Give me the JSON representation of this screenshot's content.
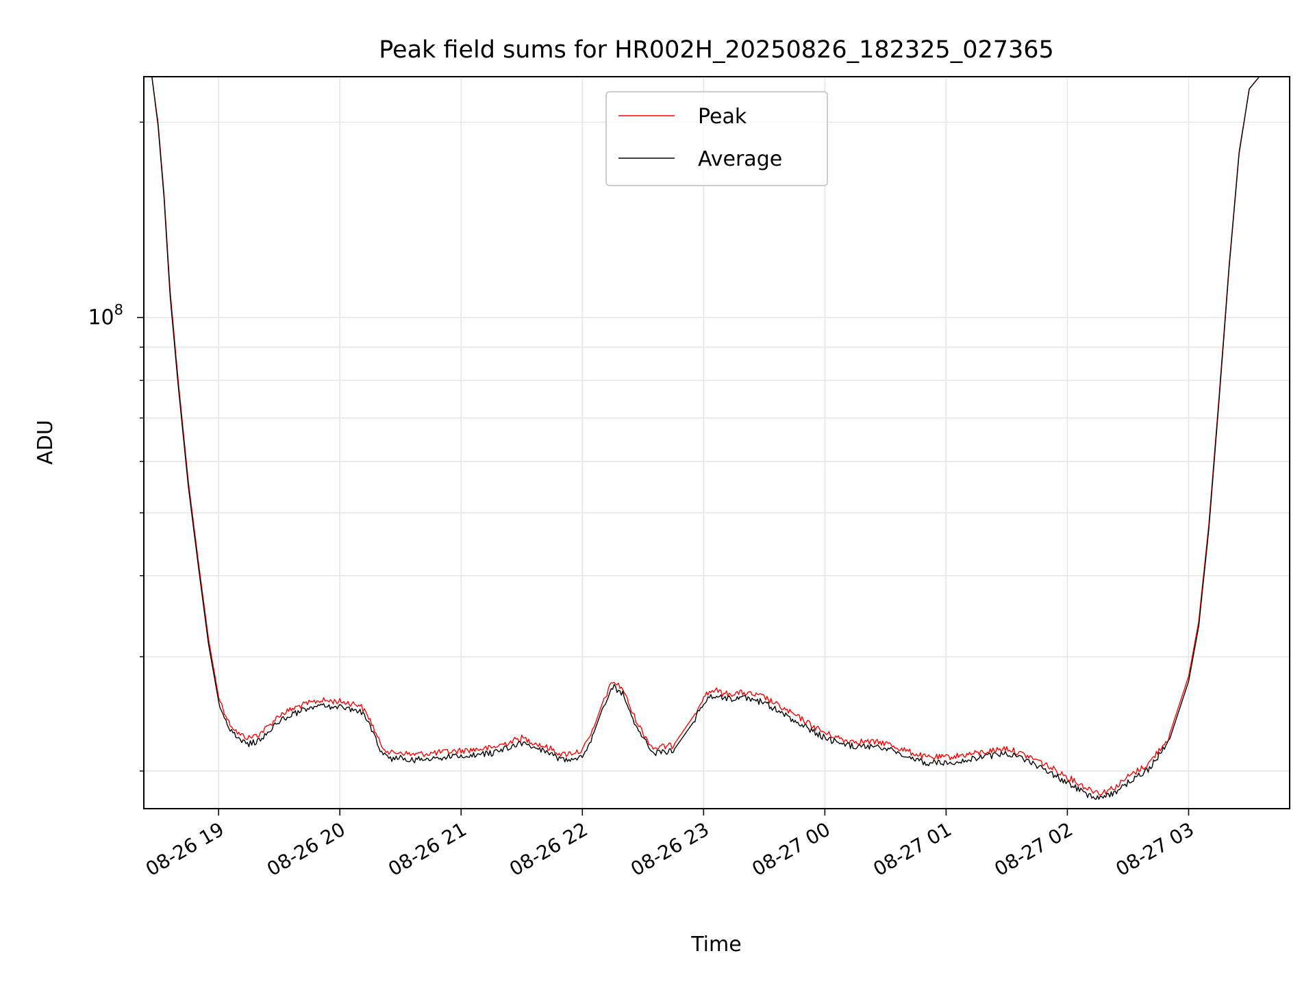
{
  "chart_data": {
    "type": "line",
    "title": "Peak field sums for HR002H_20250826_182325_027365",
    "xlabel": "Time",
    "ylabel": "ADU",
    "x_ticks": [
      "08-26 19",
      "08-26 20",
      "08-26 21",
      "08-26 22",
      "08-26 23",
      "08-27 00",
      "08-27 01",
      "08-27 02",
      "08-27 03"
    ],
    "xlim": [
      "2025-08-26 18:23",
      "2025-08-27 03:50"
    ],
    "y_scale": "log",
    "ylim": [
      17500000,
      235000000
    ],
    "y_major_ticks": [
      {
        "value": 100000000,
        "base": "10",
        "exp": "8"
      }
    ],
    "y_minor_ticks": [
      20000000,
      30000000,
      40000000,
      50000000,
      60000000,
      70000000,
      80000000,
      90000000,
      200000000
    ],
    "grid": true,
    "legend_position": "top-center",
    "series": [
      {
        "name": "Peak",
        "color": "#ff0000",
        "x": [
          "2025-08-26 18:23",
          "2025-08-26 18:27",
          "2025-08-26 18:30",
          "2025-08-26 18:33",
          "2025-08-26 18:36",
          "2025-08-26 18:40",
          "2025-08-26 18:45",
          "2025-08-26 18:50",
          "2025-08-26 18:55",
          "2025-08-26 19:00",
          "2025-08-26 19:05",
          "2025-08-26 19:10",
          "2025-08-26 19:15",
          "2025-08-26 19:20",
          "2025-08-26 19:25",
          "2025-08-26 19:30",
          "2025-08-26 19:40",
          "2025-08-26 19:50",
          "2025-08-26 20:00",
          "2025-08-26 20:10",
          "2025-08-26 20:15",
          "2025-08-26 20:20",
          "2025-08-26 20:25",
          "2025-08-26 20:30",
          "2025-08-26 20:35",
          "2025-08-26 20:45",
          "2025-08-26 21:00",
          "2025-08-26 21:15",
          "2025-08-26 21:30",
          "2025-08-26 21:45",
          "2025-08-26 21:50",
          "2025-08-26 22:00",
          "2025-08-26 22:05",
          "2025-08-26 22:10",
          "2025-08-26 22:15",
          "2025-08-26 22:20",
          "2025-08-26 22:25",
          "2025-08-26 22:30",
          "2025-08-26 22:35",
          "2025-08-26 22:45",
          "2025-08-26 22:55",
          "2025-08-26 23:00",
          "2025-08-26 23:05",
          "2025-08-26 23:10",
          "2025-08-26 23:20",
          "2025-08-26 23:30",
          "2025-08-26 23:40",
          "2025-08-26 23:50",
          "2025-08-27 00:00",
          "2025-08-27 00:10",
          "2025-08-27 00:20",
          "2025-08-27 00:30",
          "2025-08-27 00:40",
          "2025-08-27 00:50",
          "2025-08-27 01:00",
          "2025-08-27 01:15",
          "2025-08-27 01:30",
          "2025-08-27 01:45",
          "2025-08-27 02:00",
          "2025-08-27 02:10",
          "2025-08-27 02:17",
          "2025-08-27 02:25",
          "2025-08-27 02:30",
          "2025-08-27 02:40",
          "2025-08-27 02:50",
          "2025-08-27 03:00",
          "2025-08-27 03:05",
          "2025-08-27 03:10",
          "2025-08-27 03:15",
          "2025-08-27 03:20",
          "2025-08-27 03:25",
          "2025-08-27 03:30",
          "2025-08-27 03:35",
          "2025-08-27 03:40",
          "2025-08-27 03:50"
        ],
        "values": [
          235000000,
          235000000,
          200000000,
          155000000,
          110000000,
          80000000,
          56000000,
          42000000,
          32000000,
          26000000,
          23800000,
          22800000,
          22500000,
          22800000,
          23500000,
          24400000,
          25200000,
          25700000,
          25600000,
          25300000,
          24000000,
          22000000,
          21300000,
          21400000,
          21200000,
          21300000,
          21500000,
          21700000,
          22500000,
          21600000,
          21200000,
          21500000,
          23000000,
          25500000,
          27500000,
          26800000,
          24500000,
          22900000,
          21700000,
          21900000,
          24300000,
          26100000,
          26700000,
          26300000,
          26400000,
          26000000,
          24900000,
          23900000,
          22900000,
          22300000,
          22200000,
          22100000,
          21500000,
          21000000,
          21000000,
          21300000,
          21700000,
          20800000,
          19600000,
          18800000,
          18500000,
          19000000,
          19600000,
          20500000,
          22500000,
          28000000,
          34000000,
          48000000,
          75000000,
          120000000,
          180000000,
          225000000,
          235000000,
          235000000,
          235000000
        ]
      },
      {
        "name": "Average",
        "color": "#000000",
        "x": [
          "2025-08-26 18:23",
          "2025-08-26 18:27",
          "2025-08-26 18:30",
          "2025-08-26 18:33",
          "2025-08-26 18:36",
          "2025-08-26 18:40",
          "2025-08-26 18:45",
          "2025-08-26 18:50",
          "2025-08-26 18:55",
          "2025-08-26 19:00",
          "2025-08-26 19:05",
          "2025-08-26 19:10",
          "2025-08-26 19:15",
          "2025-08-26 19:20",
          "2025-08-26 19:25",
          "2025-08-26 19:30",
          "2025-08-26 19:40",
          "2025-08-26 19:50",
          "2025-08-26 20:00",
          "2025-08-26 20:10",
          "2025-08-26 20:15",
          "2025-08-26 20:20",
          "2025-08-26 20:25",
          "2025-08-26 20:30",
          "2025-08-26 20:35",
          "2025-08-26 20:45",
          "2025-08-26 21:00",
          "2025-08-26 21:15",
          "2025-08-26 21:30",
          "2025-08-26 21:45",
          "2025-08-26 21:50",
          "2025-08-26 22:00",
          "2025-08-26 22:05",
          "2025-08-26 22:10",
          "2025-08-26 22:15",
          "2025-08-26 22:20",
          "2025-08-26 22:25",
          "2025-08-26 22:30",
          "2025-08-26 22:35",
          "2025-08-26 22:45",
          "2025-08-26 22:55",
          "2025-08-26 23:00",
          "2025-08-26 23:05",
          "2025-08-26 23:10",
          "2025-08-26 23:20",
          "2025-08-26 23:30",
          "2025-08-26 23:40",
          "2025-08-26 23:50",
          "2025-08-27 00:00",
          "2025-08-27 00:10",
          "2025-08-27 00:20",
          "2025-08-27 00:30",
          "2025-08-27 00:40",
          "2025-08-27 00:50",
          "2025-08-27 01:00",
          "2025-08-27 01:15",
          "2025-08-27 01:30",
          "2025-08-27 01:45",
          "2025-08-27 02:00",
          "2025-08-27 02:10",
          "2025-08-27 02:17",
          "2025-08-27 02:25",
          "2025-08-27 02:30",
          "2025-08-27 02:40",
          "2025-08-27 02:50",
          "2025-08-27 03:00",
          "2025-08-27 03:05",
          "2025-08-27 03:10",
          "2025-08-27 03:15",
          "2025-08-27 03:20",
          "2025-08-27 03:25",
          "2025-08-27 03:30",
          "2025-08-27 03:35",
          "2025-08-27 03:40",
          "2025-08-27 03:50"
        ],
        "values": [
          235000000,
          235000000,
          198000000,
          153000000,
          108000000,
          78500000,
          55000000,
          41300000,
          31400000,
          25600000,
          23300000,
          22300000,
          22000000,
          22300000,
          23000000,
          23900000,
          24700000,
          25200000,
          25100000,
          24800000,
          23500000,
          21500000,
          20900000,
          21000000,
          20800000,
          20900000,
          21100000,
          21300000,
          22100000,
          21200000,
          20800000,
          21100000,
          22600000,
          25000000,
          27000000,
          26300000,
          24000000,
          22500000,
          21300000,
          21500000,
          23800000,
          25600000,
          26200000,
          25800000,
          25900000,
          25500000,
          24400000,
          23400000,
          22500000,
          21900000,
          21800000,
          21700000,
          21100000,
          20600000,
          20600000,
          20900000,
          21300000,
          20400000,
          19200000,
          18400000,
          18200000,
          18600000,
          19200000,
          20100000,
          22100000,
          27500000,
          33400000,
          47200000,
          74000000,
          119000000,
          179000000,
          225000000,
          235000000,
          235000000,
          235000000
        ]
      }
    ]
  }
}
